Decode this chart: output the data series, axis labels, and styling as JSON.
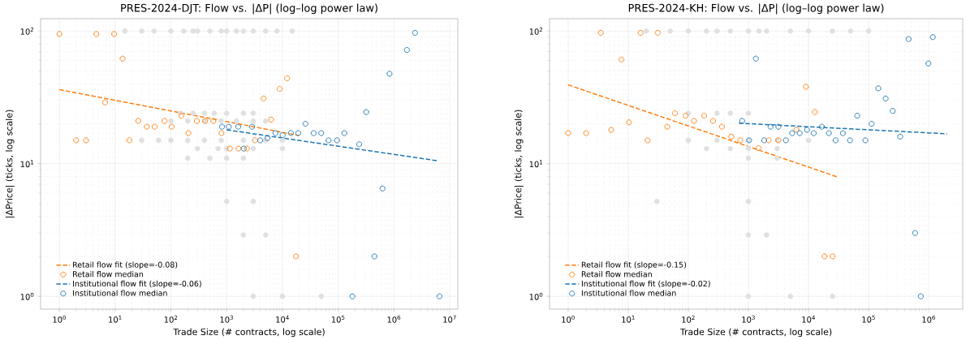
{
  "chart_data": [
    {
      "type": "scatter",
      "title": "PRES-2024-DJT: Flow vs. |ΔP| (log–log power law)",
      "xlabel": "Trade Size (# contracts, log scale)",
      "ylabel": "|ΔPrice| (ticks, log scale)",
      "log": "xy",
      "grid": true,
      "legend": "bottom left",
      "xlim": [
        0.46,
        14000000
      ],
      "ylim": [
        0.8,
        124
      ],
      "xticks": [
        {
          "value": 1,
          "label": "10$^{0}$"
        },
        {
          "value": 10,
          "label": "10$^{1}$"
        },
        {
          "value": 100,
          "label": "10$^{2}$"
        },
        {
          "value": 1000,
          "label": "10$^{3}$"
        },
        {
          "value": 10000,
          "label": "10$^{4}$"
        },
        {
          "value": 100000,
          "label": "10$^{5}$"
        },
        {
          "value": 1000000,
          "label": "10$^{6}$"
        },
        {
          "value": 10000000,
          "label": "10$^{7}$"
        }
      ],
      "yticks": [
        {
          "value": 1,
          "label": "10$^{0}$"
        },
        {
          "value": 10,
          "label": "10$^{1}$"
        },
        {
          "value": 100,
          "label": "10$^{2}$"
        }
      ],
      "series": [
        {
          "color": "#e0e0e0",
          "marker": "circle",
          "x": [
            15,
            30,
            50,
            100,
            170,
            250,
            300,
            500,
            800,
            1000,
            1500,
            2000,
            3000,
            5000,
            8000,
            15000,
            150,
            250,
            400,
            600,
            1000,
            2000,
            3000,
            100,
            200,
            400,
            800,
            1500,
            3000,
            5000,
            30,
            60,
            100,
            200,
            400,
            800,
            2000,
            5000,
            10000,
            300,
            700,
            1000,
            3000,
            10000,
            200,
            500,
            1000,
            2000,
            1000,
            3000,
            2000,
            5000,
            3000,
            10000,
            50000
          ],
          "values": [
            100,
            100,
            100,
            100,
            100,
            100,
            100,
            100,
            100,
            100,
            100,
            100,
            100,
            100,
            100,
            100,
            24,
            24,
            24,
            24,
            24,
            24,
            24,
            21,
            21,
            21,
            21,
            21,
            21,
            21,
            15,
            15,
            15,
            15,
            15,
            15,
            15,
            15,
            15,
            13,
            13,
            13,
            13,
            13,
            11,
            11,
            11,
            11,
            5.2,
            5.2,
            2.9,
            2.9,
            1,
            1,
            1
          ]
        },
        {
          "type": "line",
          "name": "Retail flow fit (slope=-0.08)",
          "color": "#ff7f0e",
          "line_style": "dashed",
          "marker": "none",
          "x": [
            1,
            20000
          ],
          "values": [
            36.2,
            16.3
          ]
        },
        {
          "name": "Retail flow median",
          "color": "#ff7f0e",
          "marker": "circle",
          "x": [
            1,
            2,
            3,
            4.6,
            6.6,
            9.6,
            13.6,
            18,
            26,
            37,
            51,
            77,
            103,
            154,
            206,
            292,
            412,
            577,
            807,
            1143,
            1633,
            2314,
            3236,
            4580,
            6270,
            8950,
            12130,
            17540
          ],
          "values": [
            95,
            15,
            15,
            95,
            29,
            95,
            62,
            15,
            21,
            19,
            19,
            21,
            19,
            23,
            17,
            21,
            21,
            21,
            17,
            13,
            13,
            13,
            15,
            31,
            21.5,
            36.6,
            44,
            2
          ]
        },
        {
          "type": "line",
          "name": "Institutional flow fit (slope=-0.06)",
          "color": "#1f77b4",
          "line_style": "dashed",
          "marker": "none",
          "x": [
            1000,
            6250000
          ],
          "values": [
            18,
            10.5
          ]
        },
        {
          "name": "Institutional flow median",
          "color": "#1f77b4",
          "marker": "circle",
          "x": [
            826,
            1092,
            1614,
            2023,
            2864,
            4000,
            5410,
            7500,
            10100,
            14200,
            19200,
            25900,
            36300,
            49700,
            67200,
            95300,
            129000,
            180000,
            238000,
            319000,
            447000,
            625000,
            834000,
            1710000,
            2390000,
            6550000
          ],
          "values": [
            19,
            19,
            19,
            13,
            19,
            15,
            15.6,
            17,
            16.4,
            17,
            17,
            20,
            17,
            17,
            15,
            15,
            17,
            1,
            14,
            24.5,
            2,
            6.5,
            47.6,
            72,
            97,
            1
          ]
        }
      ]
    },
    {
      "type": "scatter",
      "title": "PRES-2024-KH: Flow vs. |ΔP| (log–log power law)",
      "xlabel": "Trade Size (# contracts, log scale)",
      "ylabel": "|ΔPrice| (ticks, log scale)",
      "log": "xy",
      "grid": true,
      "legend": "bottom left",
      "xlim": [
        0.49,
        3680000
      ],
      "ylim": [
        0.8,
        124
      ],
      "xticks": [
        {
          "value": 1,
          "label": "10$^{0}$"
        },
        {
          "value": 10,
          "label": "10$^{1}$"
        },
        {
          "value": 100,
          "label": "10$^{2}$"
        },
        {
          "value": 1000,
          "label": "10$^{3}$"
        },
        {
          "value": 10000,
          "label": "10$^{4}$"
        },
        {
          "value": 100000,
          "label": "10$^{5}$"
        },
        {
          "value": 1000000,
          "label": "10$^{6}$"
        }
      ],
      "yticks": [
        {
          "value": 1,
          "label": "10$^{0}$"
        },
        {
          "value": 10,
          "label": "10$^{1}$"
        },
        {
          "value": 100,
          "label": "10$^{2}$"
        }
      ],
      "series": [
        {
          "color": "#e0e0e0",
          "marker": "circle",
          "x": [
            20,
            50,
            100,
            200,
            300,
            500,
            1000,
            1500,
            2000,
            5000,
            10000,
            25000,
            50000,
            100000,
            100,
            300,
            500,
            1000,
            100,
            300,
            1000,
            3000,
            10000,
            200,
            500,
            1000,
            3000,
            1000,
            3000,
            30,
            1000,
            1000,
            2000,
            1000,
            5000,
            25000
          ],
          "values": [
            100,
            100,
            100,
            100,
            100,
            100,
            100,
            100,
            100,
            100,
            100,
            100,
            100,
            100,
            24,
            24,
            24,
            24,
            15,
            15,
            15,
            15,
            15,
            13,
            13,
            13,
            13,
            11,
            11,
            5.2,
            5.2,
            2.9,
            2.9,
            1,
            1,
            1
          ]
        },
        {
          "type": "line",
          "name": "Retail flow fit (slope=-0.15)",
          "color": "#ff7f0e",
          "line_style": "dashed",
          "marker": "none",
          "x": [
            1,
            31400
          ],
          "values": [
            39.3,
            7.9
          ]
        },
        {
          "name": "Retail flow median",
          "color": "#ff7f0e",
          "marker": "circle",
          "x": [
            1,
            2,
            3.5,
            5.2,
            7.7,
            10.3,
            16,
            21,
            31,
            44.5,
            60,
            90,
            124,
            183,
            257,
            362,
            519,
            731,
            1475,
            2170,
            3150,
            6300,
            9060,
            12750,
            18500,
            25200
          ],
          "values": [
            17,
            17,
            97,
            18,
            61,
            20.5,
            97,
            15,
            97,
            19,
            24,
            23,
            21,
            23,
            21,
            19,
            16,
            15,
            13.1,
            15,
            15,
            18,
            38,
            24.5,
            2,
            2
          ]
        },
        {
          "type": "line",
          "name": "Institutional flow fit (slope=-0.02)",
          "color": "#1f77b4",
          "line_style": "dashed",
          "marker": "none",
          "x": [
            693,
            2020000
          ],
          "values": [
            20.2,
            16.8
          ]
        },
        {
          "name": "Institutional flow median",
          "color": "#1f77b4",
          "marker": "circle",
          "x": [
            785,
            1028,
            1330,
            1830,
            2330,
            3150,
            4200,
            5340,
            7130,
            9430,
            12200,
            16700,
            21800,
            28200,
            37300,
            49000,
            64700,
            88300,
            112000,
            145000,
            192000,
            252000,
            336000,
            463000,
            593000,
            738000,
            988000,
            1170000
          ],
          "values": [
            21,
            15,
            62,
            15,
            19,
            19,
            15,
            17,
            17,
            18,
            17,
            19,
            17,
            15,
            17,
            15,
            23,
            15,
            20,
            37,
            31,
            25,
            16,
            87,
            3,
            1,
            57,
            90
          ]
        }
      ]
    }
  ]
}
